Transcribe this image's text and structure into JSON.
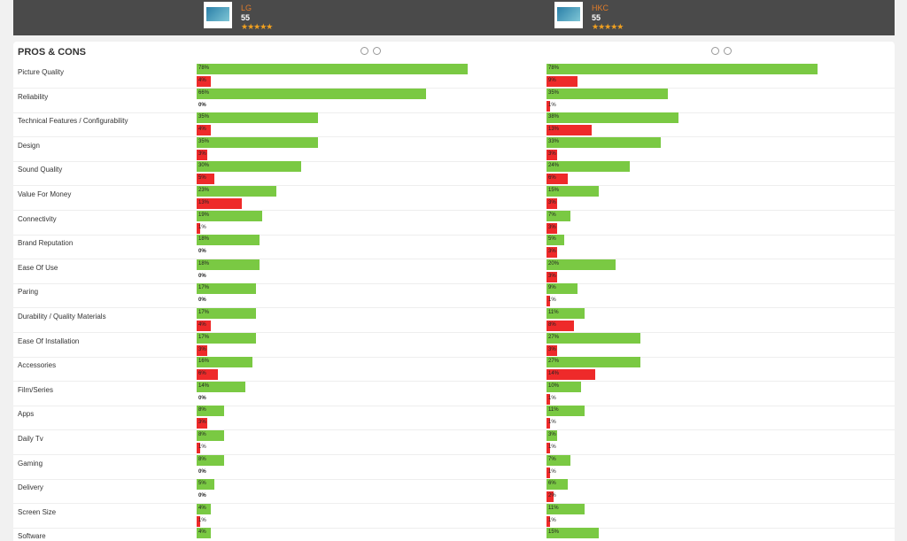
{
  "header": {
    "products": [
      {
        "name": "LG",
        "score": 55,
        "rating": "★★★★★"
      },
      {
        "name": "HKC",
        "score": 55,
        "rating": "★★★★★"
      }
    ]
  },
  "section": {
    "title": "PROS & CONS",
    "rows": [
      {
        "label": "Picture Quality",
        "products": [
          {
            "pros": 78,
            "pros_label": "78%",
            "cons": 4,
            "cons_label": "4%"
          },
          {
            "pros": 78,
            "pros_label": "78%",
            "cons": 9,
            "cons_label": "9%"
          }
        ]
      },
      {
        "label": "Reliability",
        "products": [
          {
            "pros": 66,
            "pros_label": "66%",
            "cons": 0,
            "cons_label": "0%"
          },
          {
            "pros": 35,
            "pros_label": "35%",
            "cons": 1,
            "cons_label": "1%"
          }
        ]
      },
      {
        "label": "Technical Features / Configurability",
        "products": [
          {
            "pros": 35,
            "pros_label": "35%",
            "cons": 4,
            "cons_label": "4%"
          },
          {
            "pros": 38,
            "pros_label": "38%",
            "cons": 13,
            "cons_label": "13%"
          }
        ]
      },
      {
        "label": "Design",
        "products": [
          {
            "pros": 35,
            "pros_label": "35%",
            "cons": 3,
            "cons_label": "3%"
          },
          {
            "pros": 33,
            "pros_label": "33%",
            "cons": 3,
            "cons_label": "3%"
          }
        ]
      },
      {
        "label": "Sound Quality",
        "products": [
          {
            "pros": 30,
            "pros_label": "30%",
            "cons": 5,
            "cons_label": "5%"
          },
          {
            "pros": 24,
            "pros_label": "24%",
            "cons": 6,
            "cons_label": "6%"
          }
        ]
      },
      {
        "label": "Value For Money",
        "products": [
          {
            "pros": 23,
            "pros_label": "23%",
            "cons": 13,
            "cons_label": "13%"
          },
          {
            "pros": 15,
            "pros_label": "15%",
            "cons": 3,
            "cons_label": "3%"
          }
        ]
      },
      {
        "label": "Connectivity",
        "products": [
          {
            "pros": 19,
            "pros_label": "19%",
            "cons": 1,
            "cons_label": "1%"
          },
          {
            "pros": 7,
            "pros_label": "7%",
            "cons": 3,
            "cons_label": "3%"
          }
        ]
      },
      {
        "label": "Brand Reputation",
        "products": [
          {
            "pros": 18,
            "pros_label": "18%",
            "cons": 0,
            "cons_label": "0%"
          },
          {
            "pros": 5,
            "pros_label": "5%",
            "cons": 3,
            "cons_label": "3%"
          }
        ]
      },
      {
        "label": "Ease Of Use",
        "products": [
          {
            "pros": 18,
            "pros_label": "18%",
            "cons": 0,
            "cons_label": "0%"
          },
          {
            "pros": 20,
            "pros_label": "20%",
            "cons": 3,
            "cons_label": "3%"
          }
        ]
      },
      {
        "label": "Paring",
        "products": [
          {
            "pros": 17,
            "pros_label": "17%",
            "cons": 0,
            "cons_label": "0%"
          },
          {
            "pros": 9,
            "pros_label": "9%",
            "cons": 1,
            "cons_label": "1%"
          }
        ]
      },
      {
        "label": "Durability / Quality Materials",
        "products": [
          {
            "pros": 17,
            "pros_label": "17%",
            "cons": 4,
            "cons_label": "4%"
          },
          {
            "pros": 11,
            "pros_label": "11%",
            "cons": 8,
            "cons_label": "8%"
          }
        ]
      },
      {
        "label": "Ease Of Installation",
        "products": [
          {
            "pros": 17,
            "pros_label": "17%",
            "cons": 3,
            "cons_label": "3%"
          },
          {
            "pros": 27,
            "pros_label": "27%",
            "cons": 3,
            "cons_label": "3%"
          }
        ]
      },
      {
        "label": "Accessories",
        "products": [
          {
            "pros": 16,
            "pros_label": "16%",
            "cons": 6,
            "cons_label": "6%"
          },
          {
            "pros": 27,
            "pros_label": "27%",
            "cons": 14,
            "cons_label": "14%"
          }
        ]
      },
      {
        "label": "Film/Series",
        "products": [
          {
            "pros": 14,
            "pros_label": "14%",
            "cons": 0,
            "cons_label": "0%"
          },
          {
            "pros": 10,
            "pros_label": "10%",
            "cons": 1,
            "cons_label": "1%"
          }
        ]
      },
      {
        "label": "Apps",
        "products": [
          {
            "pros": 8,
            "pros_label": "8%",
            "cons": 3,
            "cons_label": "3%"
          },
          {
            "pros": 11,
            "pros_label": "11%",
            "cons": 1,
            "cons_label": "1%"
          }
        ]
      },
      {
        "label": "Daily Tv",
        "products": [
          {
            "pros": 8,
            "pros_label": "8%",
            "cons": 1,
            "cons_label": "1%"
          },
          {
            "pros": 3,
            "pros_label": "3%",
            "cons": 1,
            "cons_label": "1%"
          }
        ]
      },
      {
        "label": "Gaming",
        "products": [
          {
            "pros": 8,
            "pros_label": "8%",
            "cons": 0,
            "cons_label": "0%"
          },
          {
            "pros": 7,
            "pros_label": "7%",
            "cons": 1,
            "cons_label": "1%"
          }
        ]
      },
      {
        "label": "Delivery",
        "products": [
          {
            "pros": 5,
            "pros_label": "5%",
            "cons": 0,
            "cons_label": "0%"
          },
          {
            "pros": 6,
            "pros_label": "6%",
            "cons": 2,
            "cons_label": "2%"
          }
        ]
      },
      {
        "label": "Screen Size",
        "products": [
          {
            "pros": 4,
            "pros_label": "4%",
            "cons": 1,
            "cons_label": "1%"
          },
          {
            "pros": 11,
            "pros_label": "11%",
            "cons": 1,
            "cons_label": "1%"
          }
        ]
      },
      {
        "label": "Software",
        "products": [
          {
            "pros": 4,
            "pros_label": "4%"
          },
          {
            "pros": 15,
            "pros_label": "15%"
          }
        ]
      }
    ]
  }
}
